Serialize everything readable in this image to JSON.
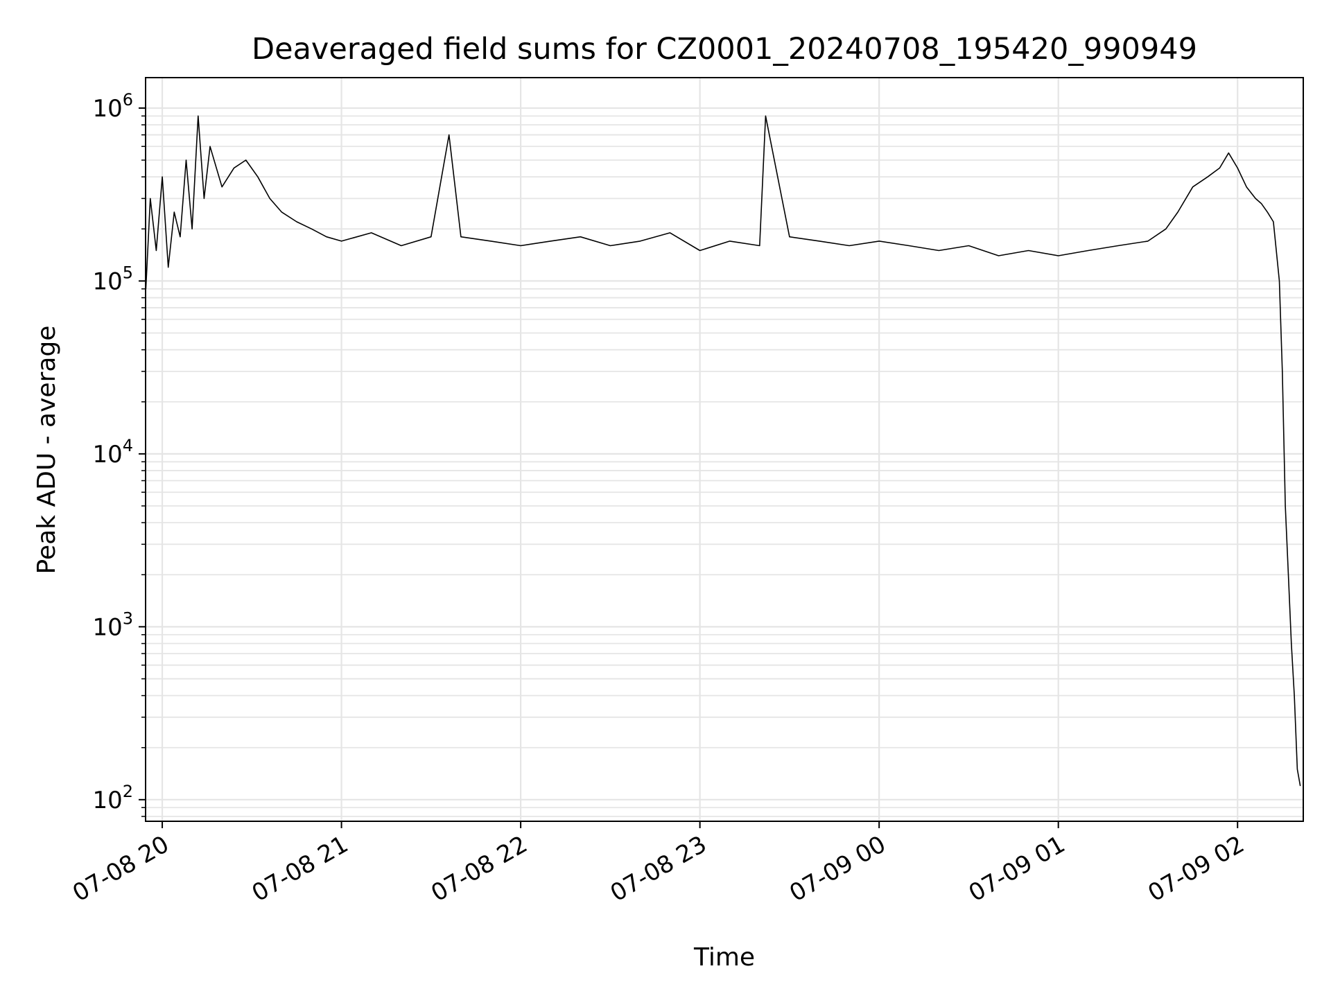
{
  "chart_data": {
    "type": "line",
    "title": "Deaveraged field sums for CZ0001_20240708_195420_990949",
    "xlabel": "Time",
    "ylabel": "Peak ADU - average",
    "yscale": "log",
    "ylim": [
      75,
      1500000
    ],
    "xlim": [
      "2024-07-08 19:54:25",
      "2024-07-09 02:22:00"
    ],
    "grid": true,
    "line_color": "#000000",
    "grid_color": "#e5e5e5",
    "x_ticks": [
      {
        "label": "07-08 20",
        "t": "2024-07-08 20:00:00"
      },
      {
        "label": "07-08 21",
        "t": "2024-07-08 21:00:00"
      },
      {
        "label": "07-08 22",
        "t": "2024-07-08 22:00:00"
      },
      {
        "label": "07-08 23",
        "t": "2024-07-08 23:00:00"
      },
      {
        "label": "07-09 00",
        "t": "2024-07-09 00:00:00"
      },
      {
        "label": "07-09 01",
        "t": "2024-07-09 01:00:00"
      },
      {
        "label": "07-09 02",
        "t": "2024-07-09 02:00:00"
      }
    ],
    "y_ticks": [
      {
        "base": "10",
        "exp": "2",
        "value": 100
      },
      {
        "base": "10",
        "exp": "3",
        "value": 1000
      },
      {
        "base": "10",
        "exp": "4",
        "value": 10000
      },
      {
        "base": "10",
        "exp": "5",
        "value": 100000
      },
      {
        "base": "10",
        "exp": "6",
        "value": 1000000
      }
    ],
    "series": [
      {
        "x": [
          "2024-07-08 19:54:30",
          "2024-07-08 19:56:00",
          "2024-07-08 19:58:00",
          "2024-07-08 20:00:00",
          "2024-07-08 20:02:00",
          "2024-07-08 20:04:00",
          "2024-07-08 20:06:00",
          "2024-07-08 20:08:00",
          "2024-07-08 20:10:00",
          "2024-07-08 20:12:00",
          "2024-07-08 20:14:00",
          "2024-07-08 20:16:00",
          "2024-07-08 20:20:00",
          "2024-07-08 20:24:00",
          "2024-07-08 20:28:00",
          "2024-07-08 20:32:00",
          "2024-07-08 20:36:00",
          "2024-07-08 20:40:00",
          "2024-07-08 20:45:00",
          "2024-07-08 20:50:00",
          "2024-07-08 20:55:00",
          "2024-07-08 21:00:00",
          "2024-07-08 21:10:00",
          "2024-07-08 21:20:00",
          "2024-07-08 21:30:00",
          "2024-07-08 21:36:00",
          "2024-07-08 21:40:00",
          "2024-07-08 21:50:00",
          "2024-07-08 22:00:00",
          "2024-07-08 22:10:00",
          "2024-07-08 22:20:00",
          "2024-07-08 22:30:00",
          "2024-07-08 22:40:00",
          "2024-07-08 22:50:00",
          "2024-07-08 23:00:00",
          "2024-07-08 23:10:00",
          "2024-07-08 23:20:00",
          "2024-07-08 23:22:00",
          "2024-07-08 23:30:00",
          "2024-07-08 23:40:00",
          "2024-07-08 23:50:00",
          "2024-07-09 00:00:00",
          "2024-07-09 00:10:00",
          "2024-07-09 00:20:00",
          "2024-07-09 00:30:00",
          "2024-07-09 00:40:00",
          "2024-07-09 00:50:00",
          "2024-07-09 01:00:00",
          "2024-07-09 01:10:00",
          "2024-07-09 01:20:00",
          "2024-07-09 01:30:00",
          "2024-07-09 01:36:00",
          "2024-07-09 01:40:00",
          "2024-07-09 01:45:00",
          "2024-07-09 01:50:00",
          "2024-07-09 01:54:00",
          "2024-07-09 01:57:00",
          "2024-07-09 02:00:00",
          "2024-07-09 02:03:00",
          "2024-07-09 02:06:00",
          "2024-07-09 02:08:00",
          "2024-07-09 02:10:00",
          "2024-07-09 02:12:00",
          "2024-07-09 02:14:00",
          "2024-07-09 02:15:00",
          "2024-07-09 02:16:00",
          "2024-07-09 02:17:00",
          "2024-07-09 02:18:00",
          "2024-07-09 02:19:00",
          "2024-07-09 02:20:00",
          "2024-07-09 02:21:00"
        ],
        "y": [
          90000,
          300000,
          150000,
          400000,
          120000,
          250000,
          180000,
          500000,
          200000,
          900000,
          300000,
          600000,
          350000,
          450000,
          500000,
          400000,
          300000,
          250000,
          220000,
          200000,
          180000,
          170000,
          190000,
          160000,
          180000,
          700000,
          180000,
          170000,
          160000,
          170000,
          180000,
          160000,
          170000,
          190000,
          150000,
          170000,
          160000,
          900000,
          180000,
          170000,
          160000,
          170000,
          160000,
          150000,
          160000,
          140000,
          150000,
          140000,
          150000,
          160000,
          170000,
          200000,
          250000,
          350000,
          400000,
          450000,
          550000,
          450000,
          350000,
          300000,
          280000,
          250000,
          220000,
          100000,
          30000,
          5000,
          2000,
          800,
          400,
          150,
          120
        ]
      }
    ]
  }
}
